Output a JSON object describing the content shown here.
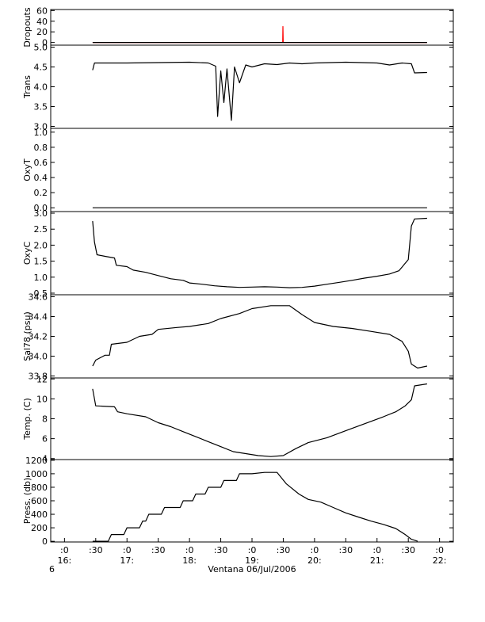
{
  "chart_data": [
    {
      "type": "line",
      "ylabel": "Dropouts",
      "ylim": [
        -5,
        62
      ],
      "yticks": [
        "60",
        "40",
        "20",
        "0"
      ],
      "ytick_values": [
        60,
        40,
        20,
        0
      ],
      "series": [
        {
          "values": [
            [
              16.45,
              0
            ],
            [
              18.95,
              0
            ],
            [
              19.49,
              0
            ],
            [
              19.495,
              30
            ],
            [
              19.5,
              0
            ],
            [
              21.8,
              0
            ]
          ],
          "color": "#ff0000"
        },
        {
          "values": [
            [
              16.45,
              0
            ],
            [
              21.8,
              0
            ]
          ],
          "color": "#000000"
        }
      ]
    },
    {
      "type": "line",
      "ylabel": "Trans",
      "ylim": [
        2.95,
        5.05
      ],
      "yticks": [
        "5.0",
        "4.5",
        "4.0",
        "3.5",
        "3.0"
      ],
      "ytick_values": [
        5.0,
        4.5,
        4.0,
        3.5,
        3.0
      ],
      "series": [
        {
          "values": [
            [
              16.45,
              4.42
            ],
            [
              16.48,
              4.6
            ],
            [
              17.0,
              4.6
            ],
            [
              17.5,
              4.61
            ],
            [
              18.0,
              4.62
            ],
            [
              18.3,
              4.6
            ],
            [
              18.42,
              4.52
            ],
            [
              18.45,
              3.25
            ],
            [
              18.5,
              4.4
            ],
            [
              18.55,
              3.6
            ],
            [
              18.6,
              4.45
            ],
            [
              18.67,
              3.15
            ],
            [
              18.72,
              4.5
            ],
            [
              18.8,
              4.1
            ],
            [
              18.9,
              4.55
            ],
            [
              19.0,
              4.5
            ],
            [
              19.2,
              4.58
            ],
            [
              19.4,
              4.56
            ],
            [
              19.6,
              4.6
            ],
            [
              19.8,
              4.58
            ],
            [
              20.0,
              4.6
            ],
            [
              20.5,
              4.62
            ],
            [
              21.0,
              4.6
            ],
            [
              21.2,
              4.55
            ],
            [
              21.4,
              4.6
            ],
            [
              21.55,
              4.58
            ],
            [
              21.6,
              4.35
            ],
            [
              21.8,
              4.36
            ]
          ],
          "color": "#000000"
        }
      ]
    },
    {
      "type": "line",
      "ylabel": "OxyT",
      "ylim": [
        -0.05,
        1.05
      ],
      "yticks": [
        "1.0",
        "0.8",
        "0.6",
        "0.4",
        "0.2",
        "0.0"
      ],
      "ytick_values": [
        1.0,
        0.8,
        0.6,
        0.4,
        0.2,
        0.0
      ],
      "series": [
        {
          "values": [
            [
              16.45,
              0.0
            ],
            [
              21.8,
              0.0
            ]
          ],
          "color": "#000000"
        }
      ]
    },
    {
      "type": "line",
      "ylabel": "OxyC",
      "ylim": [
        0.45,
        3.05
      ],
      "yticks": [
        "3.0",
        "2.5",
        "2.0",
        "1.5",
        "1.0",
        "0.5"
      ],
      "ytick_values": [
        3.0,
        2.5,
        2.0,
        1.5,
        1.0,
        0.5
      ],
      "series": [
        {
          "values": [
            [
              16.45,
              2.75
            ],
            [
              16.48,
              2.1
            ],
            [
              16.52,
              1.7
            ],
            [
              16.65,
              1.65
            ],
            [
              16.8,
              1.6
            ],
            [
              16.83,
              1.37
            ],
            [
              17.0,
              1.33
            ],
            [
              17.1,
              1.22
            ],
            [
              17.3,
              1.15
            ],
            [
              17.5,
              1.05
            ],
            [
              17.7,
              0.95
            ],
            [
              17.9,
              0.9
            ],
            [
              18.0,
              0.82
            ],
            [
              18.2,
              0.78
            ],
            [
              18.4,
              0.73
            ],
            [
              18.6,
              0.7
            ],
            [
              18.8,
              0.68
            ],
            [
              19.0,
              0.69
            ],
            [
              19.2,
              0.7
            ],
            [
              19.4,
              0.69
            ],
            [
              19.6,
              0.67
            ],
            [
              19.8,
              0.68
            ],
            [
              20.0,
              0.72
            ],
            [
              20.2,
              0.78
            ],
            [
              20.4,
              0.84
            ],
            [
              20.6,
              0.9
            ],
            [
              20.8,
              0.97
            ],
            [
              21.0,
              1.03
            ],
            [
              21.2,
              1.1
            ],
            [
              21.35,
              1.2
            ],
            [
              21.5,
              1.55
            ],
            [
              21.55,
              2.6
            ],
            [
              21.6,
              2.82
            ],
            [
              21.8,
              2.84
            ]
          ],
          "color": "#000000"
        }
      ]
    },
    {
      "type": "line",
      "ylabel": "Sal78 (psu)",
      "ylim": [
        33.78,
        34.62
      ],
      "yticks": [
        "34.6",
        "34.4",
        "34.2",
        "34.0",
        "33.8"
      ],
      "ytick_values": [
        34.6,
        34.4,
        34.2,
        34.0,
        33.8
      ],
      "series": [
        {
          "values": [
            [
              16.45,
              33.9
            ],
            [
              16.5,
              33.96
            ],
            [
              16.65,
              34.01
            ],
            [
              16.72,
              34.01
            ],
            [
              16.75,
              34.12
            ],
            [
              17.0,
              34.14
            ],
            [
              17.2,
              34.2
            ],
            [
              17.4,
              34.22
            ],
            [
              17.5,
              34.27
            ],
            [
              17.8,
              34.29
            ],
            [
              18.0,
              34.3
            ],
            [
              18.3,
              34.33
            ],
            [
              18.5,
              34.38
            ],
            [
              18.8,
              34.43
            ],
            [
              19.0,
              34.48
            ],
            [
              19.3,
              34.51
            ],
            [
              19.6,
              34.51
            ],
            [
              19.8,
              34.42
            ],
            [
              20.0,
              34.34
            ],
            [
              20.3,
              34.3
            ],
            [
              20.6,
              34.28
            ],
            [
              20.9,
              34.25
            ],
            [
              21.2,
              34.22
            ],
            [
              21.4,
              34.15
            ],
            [
              21.5,
              34.05
            ],
            [
              21.55,
              33.92
            ],
            [
              21.65,
              33.88
            ],
            [
              21.8,
              33.9
            ]
          ],
          "color": "#000000"
        }
      ]
    },
    {
      "type": "line",
      "ylabel": "Temp. (C)",
      "ylim": [
        3.9,
        12.1
      ],
      "yticks": [
        "12",
        "10",
        "8",
        "6",
        "4"
      ],
      "ytick_values": [
        12,
        10,
        8,
        6,
        4
      ],
      "series": [
        {
          "values": [
            [
              16.45,
              11.0
            ],
            [
              16.5,
              9.3
            ],
            [
              16.8,
              9.2
            ],
            [
              16.85,
              8.7
            ],
            [
              17.0,
              8.5
            ],
            [
              17.3,
              8.2
            ],
            [
              17.5,
              7.6
            ],
            [
              17.7,
              7.2
            ],
            [
              17.9,
              6.7
            ],
            [
              18.1,
              6.2
            ],
            [
              18.3,
              5.7
            ],
            [
              18.5,
              5.2
            ],
            [
              18.7,
              4.7
            ],
            [
              18.9,
              4.5
            ],
            [
              19.1,
              4.3
            ],
            [
              19.3,
              4.2
            ],
            [
              19.5,
              4.3
            ],
            [
              19.7,
              5.0
            ],
            [
              19.9,
              5.6
            ],
            [
              20.2,
              6.1
            ],
            [
              20.5,
              6.8
            ],
            [
              20.8,
              7.5
            ],
            [
              21.1,
              8.2
            ],
            [
              21.3,
              8.7
            ],
            [
              21.45,
              9.3
            ],
            [
              21.55,
              9.9
            ],
            [
              21.6,
              11.3
            ],
            [
              21.8,
              11.5
            ]
          ],
          "color": "#000000"
        }
      ]
    },
    {
      "type": "line",
      "ylabel": "Press. (db)",
      "ylim": [
        -10,
        1210
      ],
      "yticks": [
        "1200",
        "1000",
        "800",
        "600",
        "400",
        "200",
        "0"
      ],
      "ytick_values": [
        1200,
        1000,
        800,
        600,
        400,
        200,
        0
      ],
      "series": [
        {
          "values": [
            [
              16.45,
              0
            ],
            [
              16.7,
              0
            ],
            [
              16.75,
              100
            ],
            [
              16.95,
              100
            ],
            [
              17.0,
              200
            ],
            [
              17.2,
              200
            ],
            [
              17.25,
              300
            ],
            [
              17.3,
              300
            ],
            [
              17.35,
              400
            ],
            [
              17.55,
              400
            ],
            [
              17.6,
              500
            ],
            [
              17.85,
              500
            ],
            [
              17.9,
              600
            ],
            [
              18.05,
              600
            ],
            [
              18.1,
              700
            ],
            [
              18.25,
              700
            ],
            [
              18.3,
              800
            ],
            [
              18.5,
              800
            ],
            [
              18.55,
              900
            ],
            [
              18.75,
              900
            ],
            [
              18.8,
              1000
            ],
            [
              19.0,
              1000
            ],
            [
              19.2,
              1020
            ],
            [
              19.4,
              1020
            ],
            [
              19.55,
              850
            ],
            [
              19.75,
              700
            ],
            [
              19.9,
              620
            ],
            [
              20.1,
              580
            ],
            [
              20.3,
              500
            ],
            [
              20.5,
              420
            ],
            [
              20.7,
              360
            ],
            [
              20.9,
              300
            ],
            [
              21.1,
              250
            ],
            [
              21.3,
              190
            ],
            [
              21.45,
              100
            ],
            [
              21.55,
              30
            ],
            [
              21.65,
              0
            ]
          ],
          "color": "#000000"
        }
      ]
    }
  ],
  "x_axis": {
    "ticks": [
      {
        "time": 16.0,
        "label": ":0"
      },
      {
        "time": 16.5,
        "label": ":30"
      },
      {
        "time": 17.0,
        "label": ":0"
      },
      {
        "time": 17.5,
        "label": ":30"
      },
      {
        "time": 18.0,
        "label": ":0"
      },
      {
        "time": 18.5,
        "label": ":30"
      },
      {
        "time": 19.0,
        "label": ":0"
      },
      {
        "time": 19.5,
        "label": ":30"
      },
      {
        "time": 20.0,
        "label": ":0"
      },
      {
        "time": 20.5,
        "label": ":30"
      },
      {
        "time": 21.0,
        "label": ":0"
      },
      {
        "time": 21.5,
        "label": ":30"
      },
      {
        "time": 22.0,
        "label": ":0"
      }
    ],
    "hour_labels": [
      {
        "time": 16.0,
        "label": "16:"
      },
      {
        "time": 17.0,
        "label": "17:"
      },
      {
        "time": 18.0,
        "label": "18:"
      },
      {
        "time": 19.0,
        "label": "19:"
      },
      {
        "time": 20.0,
        "label": "20:"
      },
      {
        "time": 21.0,
        "label": "21:"
      },
      {
        "time": 22.0,
        "label": "22:"
      }
    ],
    "range": [
      15.78,
      22.22
    ],
    "day_label": "6",
    "caption": "Ventana 06/Jul/2006"
  }
}
